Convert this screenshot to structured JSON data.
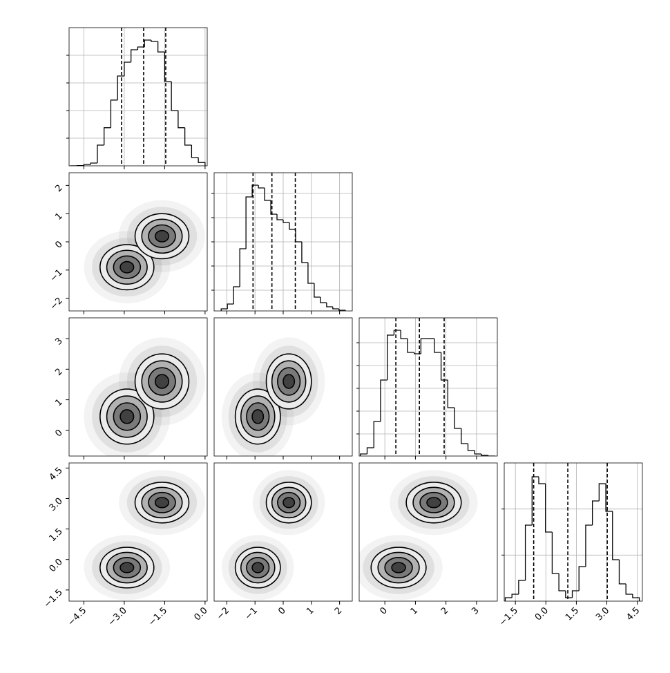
{
  "chart_data": {
    "type": "corner",
    "params": [
      {
        "xlim": [
          -5.05,
          0.08
        ],
        "xticks": [
          {
            "value": -4.5,
            "label": "−4.5"
          },
          {
            "value": -3,
            "label": "−3.0"
          },
          {
            "value": -1.5,
            "label": "−1.5"
          },
          {
            "value": 0,
            "label": "0.0"
          }
        ],
        "bins": [
          -5.0,
          -4.75,
          -4.5,
          -4.25,
          -4.0,
          -3.75,
          -3.5,
          -3.25,
          -3.0,
          -2.75,
          -2.5,
          -2.25,
          -2.0,
          -1.75,
          -1.5,
          -1.25,
          -1.0,
          -0.75,
          -0.5,
          -0.25,
          0.0
        ],
        "counts": [
          0,
          5,
          25,
          50,
          375,
          690,
          1190,
          1625,
          1875,
          2100,
          2150,
          2275,
          2250,
          2060,
          1525,
          1000,
          690,
          375,
          150,
          60
        ],
        "quantiles": [
          -3.1,
          -2.28,
          -1.46
        ],
        "hist_ylim": [
          0,
          2500
        ],
        "hist_yticks": [
          500,
          1000,
          1500,
          2000
        ]
      },
      {
        "xlim": [
          -2.45,
          2.45
        ],
        "xticks": [
          {
            "value": -2,
            "label": "−2"
          },
          {
            "value": -1,
            "label": "−1"
          },
          0,
          1,
          2
        ],
        "bins": [
          -2.2,
          -1.98,
          -1.76,
          -1.54,
          -1.32,
          -1.1,
          -0.88,
          -0.66,
          -0.44,
          -0.22,
          0.0,
          0.22,
          0.44,
          0.66,
          0.88,
          1.1,
          1.32,
          1.54,
          1.76,
          1.98,
          2.2
        ],
        "counts": [
          30,
          100,
          350,
          900,
          1650,
          1820,
          1780,
          1600,
          1400,
          1320,
          1280,
          1180,
          1000,
          700,
          400,
          200,
          120,
          60,
          30,
          10
        ],
        "quantiles": [
          -1.07,
          -0.4,
          0.43
        ],
        "hist_ylim": [
          0,
          2000
        ],
        "hist_yticks": [
          300,
          650,
          1000,
          1350,
          1700
        ]
      },
      {
        "xlim": [
          -0.84,
          3.68
        ],
        "xticks": [
          0,
          1,
          2,
          3
        ],
        "bins": [
          -0.8,
          -0.58,
          -0.36,
          -0.14,
          0.08,
          0.3,
          0.52,
          0.74,
          0.96,
          1.18,
          1.4,
          1.62,
          1.84,
          2.06,
          2.28,
          2.5,
          2.72,
          2.94,
          3.16,
          3.38,
          3.6
        ],
        "counts": [
          30,
          120,
          500,
          1100,
          1750,
          1820,
          1700,
          1500,
          1480,
          1700,
          1700,
          1500,
          1100,
          700,
          400,
          180,
          80,
          30,
          10,
          0
        ],
        "quantiles": [
          0.36,
          1.13,
          1.94
        ],
        "hist_ylim": [
          0,
          2000
        ],
        "hist_yticks": [
          320,
          650,
          980,
          1310,
          1640
        ]
      },
      {
        "xlim": [
          -2.05,
          4.75
        ],
        "xticks": [
          {
            "value": -1.5,
            "label": "−1.5"
          },
          {
            "value": 0,
            "label": "0.0"
          },
          {
            "value": 1.5,
            "label": "1.5"
          },
          {
            "value": 3,
            "label": "3.0"
          },
          {
            "value": 4.5,
            "label": "4.5"
          }
        ],
        "bins": [
          -2.0,
          -1.67,
          -1.34,
          -1.01,
          -0.68,
          -0.35,
          -0.02,
          0.31,
          0.64,
          0.97,
          1.3,
          1.63,
          1.96,
          2.29,
          2.62,
          2.95,
          3.28,
          3.61,
          3.94,
          4.27,
          4.6
        ],
        "counts": [
          75,
          150,
          450,
          1650,
          2700,
          2550,
          1500,
          600,
          225,
          75,
          225,
          750,
          1650,
          2175,
          2550,
          1950,
          900,
          375,
          150,
          75
        ],
        "quantiles": [
          -0.6,
          1.08,
          3.02
        ],
        "hist_ylim": [
          0,
          3000
        ],
        "hist_yticks": [
          1000,
          2000
        ]
      }
    ],
    "modes": [
      [
        -2.9,
        -0.9,
        0.45,
        -0.4
      ],
      [
        -1.6,
        0.2,
        1.6,
        2.8
      ]
    ],
    "spread": [
      0.5,
      0.4,
      0.45,
      0.5
    ],
    "levels": [
      0.5,
      1.0,
      1.5,
      2.0
    ]
  }
}
